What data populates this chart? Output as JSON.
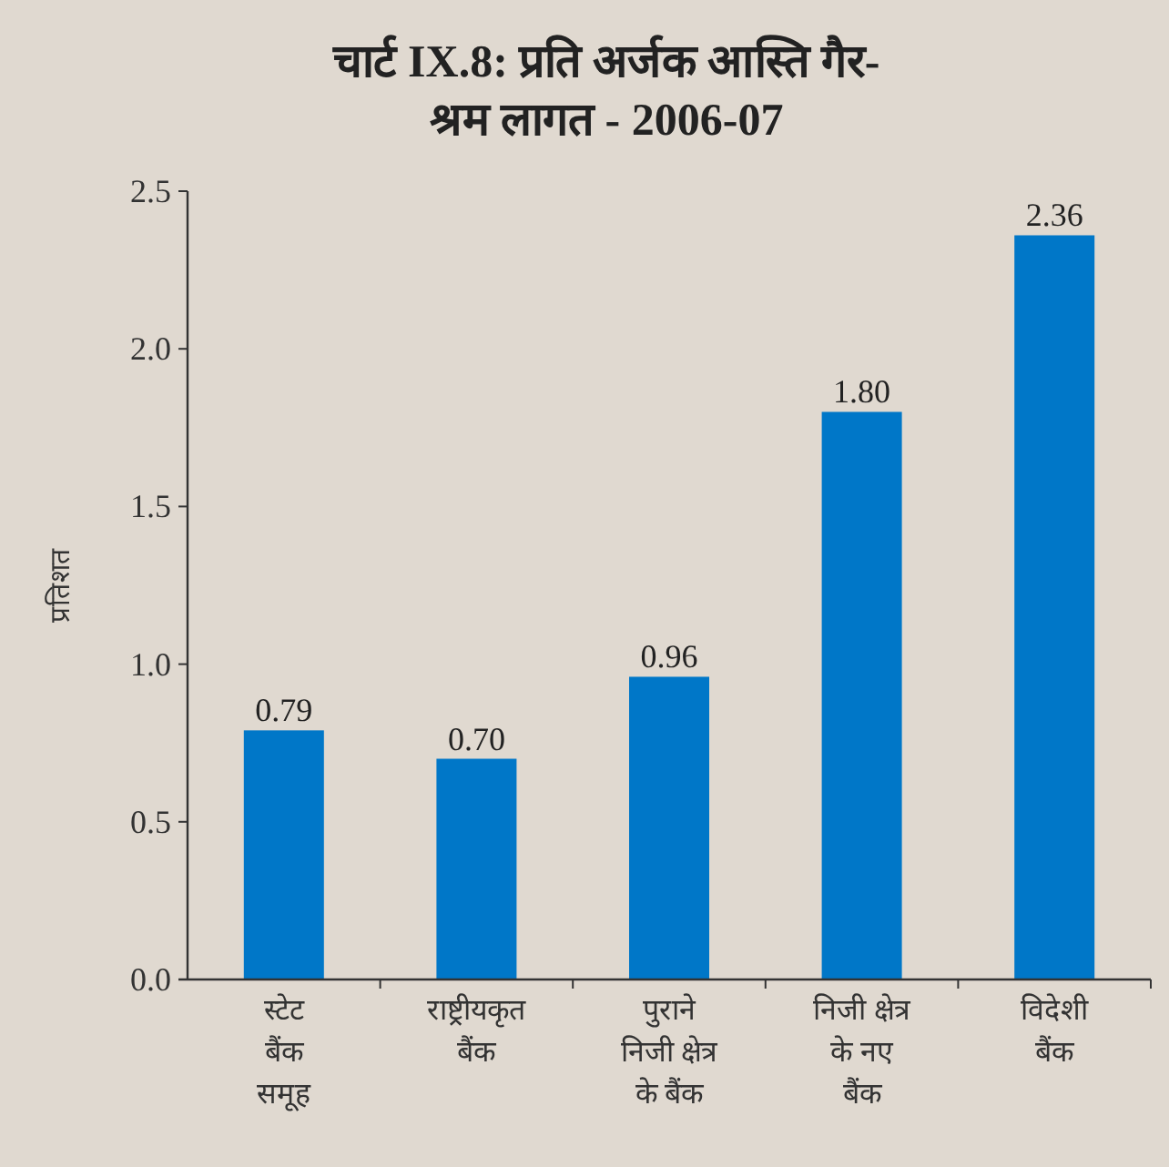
{
  "chart_data": {
    "type": "bar",
    "title": "चार्ट IX.8:  प्रति अर्जक आस्ति गैर-\nश्रम लागत -  2006-07",
    "ylabel": "प्रतिशत",
    "categories": [
      "स्टेट\nबैंक\nसमूह",
      "राष्ट्रीयकृत\nबैंक",
      "पुराने\nनिजी क्षेत्र\nके बैंक",
      "निजी क्षेत्र\nके नए\nबैंक",
      "विदेशी\nबैंक"
    ],
    "values": [
      0.79,
      0.7,
      0.96,
      1.8,
      2.36
    ],
    "value_labels": [
      "0.79",
      "0.70",
      "0.96",
      "1.80",
      "2.36"
    ],
    "color": "#0077c8",
    "ylim": [
      0,
      2.5
    ],
    "yticks": [
      {
        "value": 0,
        "label": "0.0"
      },
      {
        "value": 0.5,
        "label": "0.5"
      },
      {
        "value": 1,
        "label": "1.0"
      },
      {
        "value": 1.5,
        "label": "1.5"
      },
      {
        "value": 2,
        "label": "2.0"
      },
      {
        "value": 2.5,
        "label": "2.5"
      }
    ],
    "grid": false
  }
}
